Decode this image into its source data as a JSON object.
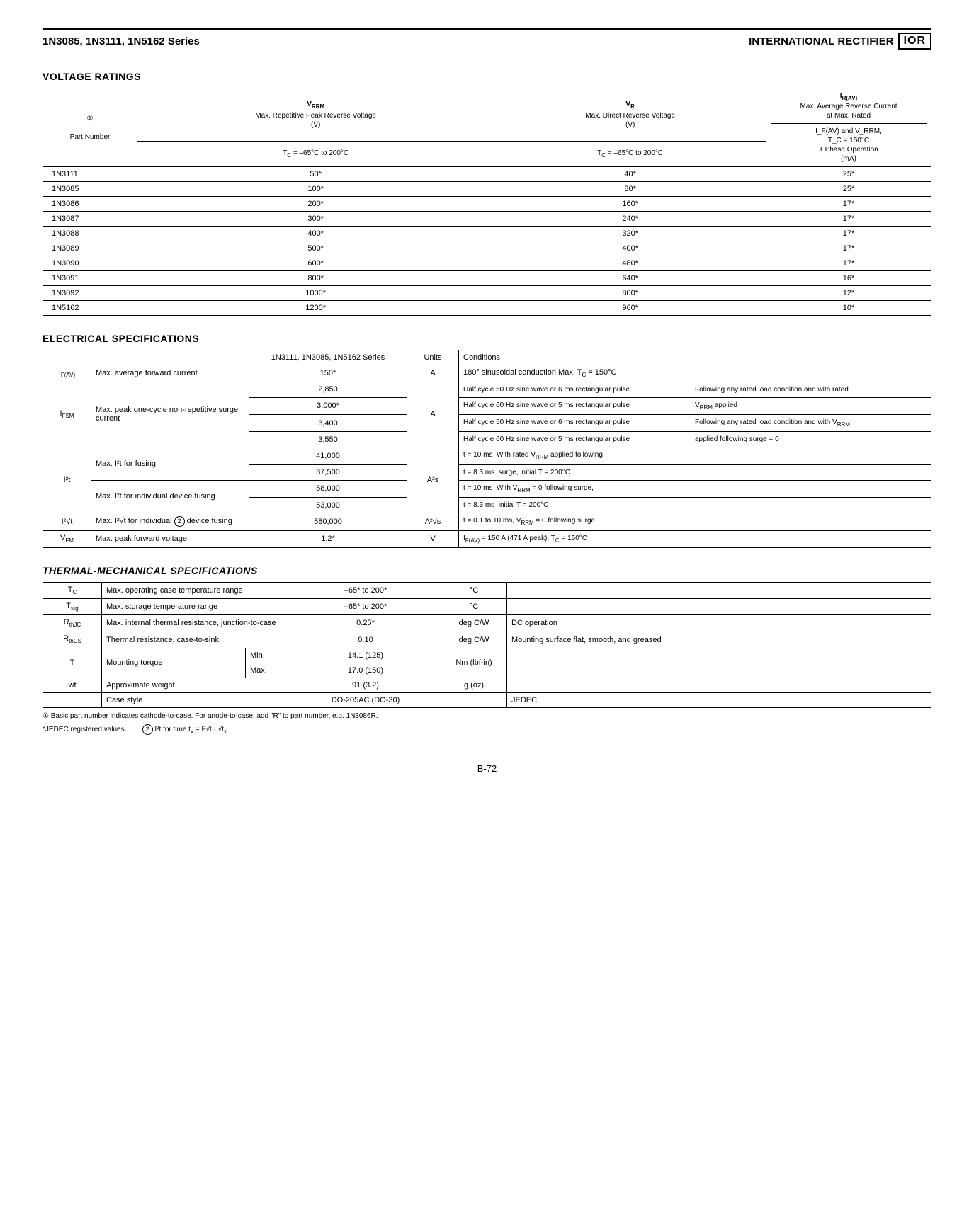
{
  "header": {
    "left": "1N3085, 1N3111, 1N5162 Series",
    "right_text": "INTERNATIONAL RECTIFIER",
    "logo": "IOR"
  },
  "voltage_ratings": {
    "title": "VOLTAGE RATINGS",
    "col_headers": {
      "part": "Part Number",
      "circled1": "①",
      "vrrm_title": "V_RRM",
      "vrrm_sub1": "Max. Repetitive Peak Reverse Voltage",
      "vrrm_sub2": "(V)",
      "vrrm_temp": "T_C = –65°C to 200°C",
      "vr_title": "V_R",
      "vr_sub1": "Max. Direct Reverse Voltage",
      "vr_sub2": "(V)",
      "vr_temp": "T_C = –65°C to 200°C",
      "iriav_title": "I_R(AV)",
      "iriav_sub1": "Max. Average Reverse Current",
      "iriav_sub2": "at Max. Rated",
      "iriav_cond1": "I_F(AV) and V_RRM,",
      "iriav_cond2": "T_C = 150°C",
      "iriav_cond3": "1 Phase Operation",
      "iriav_cond4": "(mA)"
    },
    "rows": [
      {
        "part": "1N3111",
        "vrrm": "50*",
        "vr": "40*",
        "ir": "25*"
      },
      {
        "part": "1N3085",
        "vrrm": "100*",
        "vr": "80*",
        "ir": "25*"
      },
      {
        "part": "1N3086",
        "vrrm": "200*",
        "vr": "160*",
        "ir": "17*"
      },
      {
        "part": "1N3087",
        "vrrm": "300*",
        "vr": "240*",
        "ir": "17*"
      },
      {
        "part": "1N3088",
        "vrrm": "400*",
        "vr": "320*",
        "ir": "17*"
      },
      {
        "part": "1N3089",
        "vrrm": "500*",
        "vr": "400*",
        "ir": "17*"
      },
      {
        "part": "1N3090",
        "vrrm": "600*",
        "vr": "480*",
        "ir": "17*"
      },
      {
        "part": "1N3091",
        "vrrm": "800*",
        "vr": "640*",
        "ir": "16*"
      },
      {
        "part": "1N3092",
        "vrrm": "1000*",
        "vr": "800*",
        "ir": "12*"
      },
      {
        "part": "1N5162",
        "vrrm": "1200*",
        "vr": "960*",
        "ir": "10*"
      }
    ]
  },
  "electrical": {
    "title": "ELECTRICAL SPECIFICATIONS",
    "header_series": "1N3111, 1N3085, 1N5162 Series",
    "header_units": "Units",
    "header_cond": "Conditions",
    "rows": {
      "ifav_sym": "I_F(AV)",
      "ifav_desc": "Max. average forward current",
      "ifav_val": "150*",
      "ifav_unit": "A",
      "ifav_cond": "180° sinusoidal conduction Max. T_C = 150°C",
      "ifsm_sym": "I_FSM",
      "ifsm_desc": "Max. peak one-cycle non-repetitive surge current",
      "ifsm_v1": "2,850",
      "ifsm_v2": "3,000*",
      "ifsm_v3": "3,400",
      "ifsm_v4": "3,550",
      "ifsm_unit": "A",
      "ifsm_c1a": "Half cycle 50 Hz sine wave or 6 ms rectangular pulse",
      "ifsm_c1b": "Following any rated load condition and with rated",
      "ifsm_c2a": "Half cycle 60 Hz sine wave or 5 ms rectangular pulse",
      "ifsm_c2b": "V_RRM applied",
      "ifsm_c3a": "Half cycle 50 Hz sine wave or 6 ms rectangular pulse",
      "ifsm_c3b": "Following any rated load condition and with V_RRM",
      "ifsm_c4a": "Half cycle 60 Hz sine wave or 5 ms rectangular pulse",
      "ifsm_c4b": "applied following surge = 0",
      "i2t_sym": "I²t",
      "i2t_desc1": "Max. I²t for fusing",
      "i2t_v1": "41,000",
      "i2t_v2": "37,500",
      "i2t_desc2": "Max. I²t for individual device fusing",
      "i2t_v3": "58,000",
      "i2t_v4": "53,000",
      "i2t_unit": "A²s",
      "i2t_c1a": "t = 10 ms",
      "i2t_c1b": "With rated V_RRM applied following",
      "i2t_c2a": "t = 8.3 ms",
      "i2t_c2b": "surge, initial T = 200°C.",
      "i2t_c3a": "t = 10 ms",
      "i2t_c3b": "With V_RRM = 0 following surge,",
      "i2t_c4a": "t = 8.3 ms",
      "i2t_c4b": "initial T = 200°C",
      "i2rt_sym": "I²√t",
      "i2rt_desc": "Max. I²√t for individual ② device fusing",
      "i2rt_val": "580,000",
      "i2rt_unit": "A²√s",
      "i2rt_cond": "t = 0.1 to 10 ms, V_RRM = 0 following surge.",
      "vfm_sym": "V_FM",
      "vfm_desc": "Max. peak forward voltage",
      "vfm_val": "1.2*",
      "vfm_unit": "V",
      "vfm_cond": "I_F(AV) = 150 A (471 A peak), T_C = 150°C"
    }
  },
  "thermal": {
    "title": "THERMAL-MECHANICAL SPECIFICATIONS",
    "rows": [
      {
        "sym": "T_C",
        "desc": "Max. operating case temperature range",
        "val": "–65* to 200*",
        "unit": "°C",
        "cond": ""
      },
      {
        "sym": "T_stg",
        "desc": "Max. storage temperature range",
        "val": "–65* to 200*",
        "unit": "°C",
        "cond": ""
      },
      {
        "sym": "R_thJC",
        "desc": "Max. internal thermal resistance, junction-to-case",
        "val": "0.25*",
        "unit": "deg C/W",
        "cond": "DC operation"
      },
      {
        "sym": "R_thCS",
        "desc": "Thermal resistance, case-to-sink",
        "val": "0.10",
        "unit": "deg C/W",
        "cond": "Mounting surface flat, smooth, and greased"
      }
    ],
    "torque": {
      "sym": "T",
      "desc": "Mounting torque",
      "min_lbl": "Min.",
      "min_val": "14.1 (125)",
      "max_lbl": "Max.",
      "max_val": "17.0 (150)",
      "unit": "Nm (lbf-in)"
    },
    "weight": {
      "sym": "wt",
      "desc": "Approximate weight",
      "val": "91 (3.2)",
      "unit": "g (oz)"
    },
    "case": {
      "sym": "",
      "desc": "Case style",
      "val": "DO-205AC (DO-30)",
      "unit": "",
      "cond": "JEDEC"
    }
  },
  "footnotes": {
    "note1": "① Basic part number indicates cathode-to-case.  For anode-to-case, add \"R\" to part number, e.g. 1N3086R.",
    "note2a": "*JEDEC registered values.",
    "note2b": "② I²t for time t_x = I²√t · √t_x"
  },
  "pagenum": "B-72"
}
